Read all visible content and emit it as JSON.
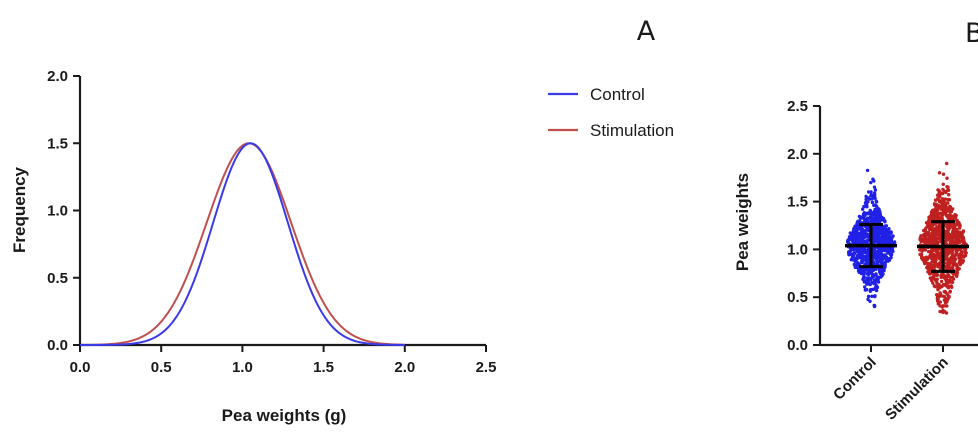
{
  "panels": {
    "a_label": "A",
    "b_label": "B"
  },
  "colors": {
    "control": "#3a3ae8",
    "stimulation": "#c0504d",
    "control_dots": "#2020e6",
    "stimulation_dots": "#c02020"
  },
  "chart_data": [
    {
      "type": "line",
      "xlabel": "Pea weights (g)",
      "ylabel": "Frequency",
      "xlim": [
        0.0,
        2.5
      ],
      "ylim": [
        0.0,
        2.0
      ],
      "xticks": [
        "0.0",
        "0.5",
        "1.0",
        "1.5",
        "2.0",
        "2.5"
      ],
      "yticks": [
        "0.0",
        "0.5",
        "1.0",
        "1.5",
        "2.0"
      ],
      "legend_position": "right",
      "series": [
        {
          "name": "Control",
          "mean": 1.05,
          "sd": 0.23,
          "peak": 1.5,
          "x": [
            0.2,
            0.4,
            0.6,
            0.8,
            1.05,
            1.3,
            1.5,
            1.7,
            1.9
          ],
          "y": [
            0.0,
            0.03,
            0.23,
            0.83,
            1.5,
            0.83,
            0.23,
            0.03,
            0.0
          ]
        },
        {
          "name": "Stimulation",
          "mean": 1.04,
          "sd": 0.26,
          "peak": 1.5,
          "x": [
            0.2,
            0.4,
            0.6,
            0.8,
            1.04,
            1.3,
            1.5,
            1.7,
            1.9
          ],
          "y": [
            0.01,
            0.07,
            0.35,
            0.97,
            1.5,
            0.91,
            0.35,
            0.06,
            0.01
          ]
        }
      ]
    },
    {
      "type": "scatter",
      "xlabel": "",
      "ylabel": "Pea weights",
      "ylim": [
        0.0,
        2.5
      ],
      "yticks": [
        "0.0",
        "0.5",
        "1.0",
        "1.5",
        "2.0",
        "2.5"
      ],
      "categories": [
        "Control",
        "Stimulation"
      ],
      "series": [
        {
          "name": "Control",
          "mean": 1.04,
          "sd": 0.22,
          "min": 0.33,
          "max": 1.83
        },
        {
          "name": "Stimulation",
          "mean": 1.03,
          "sd": 0.26,
          "min": 0.33,
          "max": 1.95
        }
      ]
    }
  ]
}
